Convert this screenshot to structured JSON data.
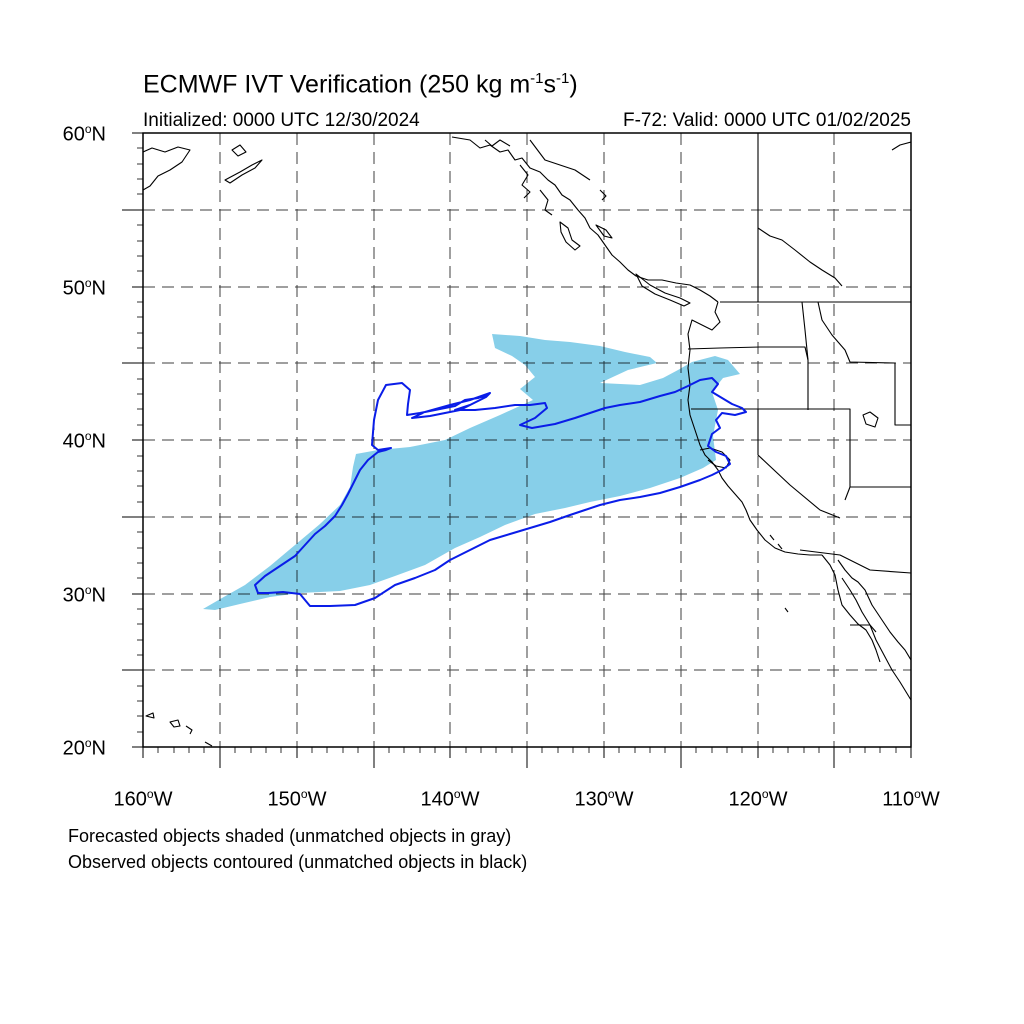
{
  "title": {
    "text_main": "ECMWF IVT Verification (250 kg m",
    "sup1": "-1",
    "text_mid": "s",
    "sup2": "-1",
    "text_end": ")"
  },
  "subtitle": {
    "initialized": "Initialized: 0000 UTC 12/30/2024",
    "valid": "F-72: Valid: 0000 UTC 01/02/2025"
  },
  "axes": {
    "lat_labels": [
      {
        "num": "60",
        "sup": "o",
        "hem": "N"
      },
      {
        "num": "50",
        "sup": "o",
        "hem": "N"
      },
      {
        "num": "40",
        "sup": "o",
        "hem": "N"
      },
      {
        "num": "30",
        "sup": "o",
        "hem": "N"
      },
      {
        "num": "20",
        "sup": "o",
        "hem": "N"
      }
    ],
    "lon_labels": [
      {
        "num": "160",
        "sup": "o",
        "hem": "W"
      },
      {
        "num": "150",
        "sup": "o",
        "hem": "W"
      },
      {
        "num": "140",
        "sup": "o",
        "hem": "W"
      },
      {
        "num": "130",
        "sup": "o",
        "hem": "W"
      },
      {
        "num": "120",
        "sup": "o",
        "hem": "W"
      },
      {
        "num": "110",
        "sup": "o",
        "hem": "W"
      }
    ],
    "lat_range": [
      20,
      60
    ],
    "lon_range": [
      -160,
      -110
    ],
    "grid": "dashed every 5 degrees"
  },
  "captions": {
    "line1": "Forecasted objects shaded (unmatched objects in gray)",
    "line2": "Observed objects contoured (unmatched objects in black)"
  },
  "colors": {
    "forecast_fill": "#87cfe9",
    "observed_contour": "#0a1de8",
    "coastline": "#000000",
    "grid": "#000000"
  }
}
